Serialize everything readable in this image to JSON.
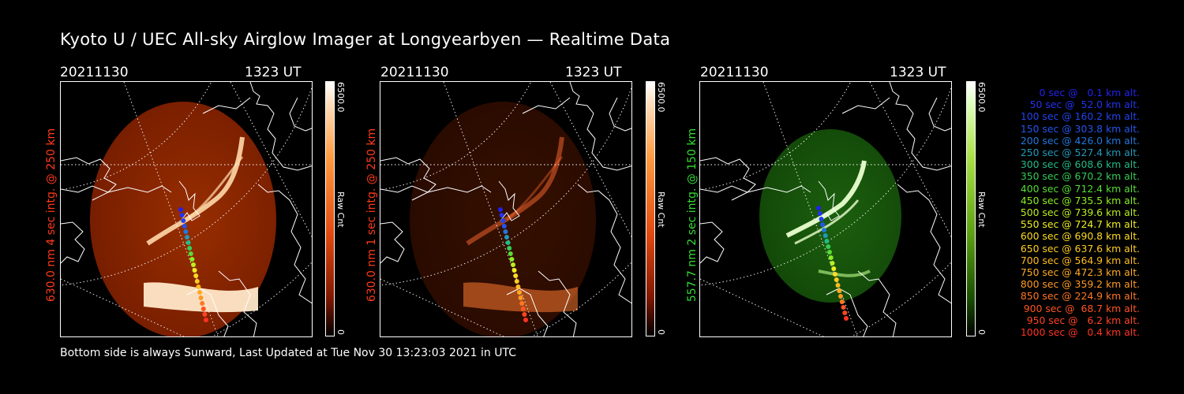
{
  "title": "Kyoto U / UEC All-sky Airglow Imager at Longyearbyen — Realtime Data",
  "footer": "Bottom side is always Sunward, Last Updated at Tue Nov 30 13:23:03 2021 in UTC",
  "panels": [
    {
      "date": "20211130",
      "time": "1323 UT",
      "ylabel": "630.0 nm 4 sec intg. @ 250 km",
      "label_color": "#ff3a1a",
      "cbar_max": "6500.0",
      "cbar_min": "0",
      "cbar_unit": "Raw Cnt",
      "theme": "red",
      "brightness": 1.0
    },
    {
      "date": "20211130",
      "time": "1323 UT",
      "ylabel": "630.0 nm 1 sec intg. @ 250 km",
      "label_color": "#ff3a1a",
      "cbar_max": "6500.0",
      "cbar_min": "0",
      "cbar_unit": "Raw Cnt",
      "theme": "red",
      "brightness": 0.35
    },
    {
      "date": "20211130",
      "time": "1323 UT",
      "ylabel": "557.7 nm 2 sec intg. @ 150 km",
      "label_color": "#33dd33",
      "cbar_max": "6500.0",
      "cbar_min": "0",
      "cbar_unit": "Raw Cnt",
      "theme": "green",
      "brightness": 1.0
    }
  ],
  "legend": [
    {
      "text": "0 sec @   0.1 km alt.",
      "color": "#2222ee"
    },
    {
      "text": "50 sec @  52.0 km alt.",
      "color": "#2233ee"
    },
    {
      "text": "100 sec @ 160.2 km alt.",
      "color": "#2244ee"
    },
    {
      "text": "150 sec @ 303.8 km alt.",
      "color": "#2255ee"
    },
    {
      "text": "200 sec @ 426.0 km alt.",
      "color": "#2277dd"
    },
    {
      "text": "250 sec @ 527.4 km alt.",
      "color": "#2299bb"
    },
    {
      "text": "300 sec @ 608.6 km alt.",
      "color": "#22bb88"
    },
    {
      "text": "350 sec @ 670.2 km alt.",
      "color": "#33cc55"
    },
    {
      "text": "400 sec @ 712.4 km alt.",
      "color": "#55dd33"
    },
    {
      "text": "450 sec @ 735.5 km alt.",
      "color": "#88ee22"
    },
    {
      "text": "500 sec @ 739.6 km alt.",
      "color": "#bbee22"
    },
    {
      "text": "550 sec @ 724.7 km alt.",
      "color": "#eeee22"
    },
    {
      "text": "600 sec @ 690.8 km alt.",
      "color": "#ffdd22"
    },
    {
      "text": "650 sec @ 637.6 km alt.",
      "color": "#ffcc22"
    },
    {
      "text": "700 sec @ 564.9 km alt.",
      "color": "#ffbb22"
    },
    {
      "text": "750 sec @ 472.3 km alt.",
      "color": "#ffaa22"
    },
    {
      "text": "800 sec @ 359.2 km alt.",
      "color": "#ff9922"
    },
    {
      "text": "850 sec @ 224.9 km alt.",
      "color": "#ff7722"
    },
    {
      "text": "900 sec @  68.7 km alt.",
      "color": "#ff5522"
    },
    {
      "text": "950 sec @   6.2 km alt.",
      "color": "#ff4422"
    },
    {
      "text": "1000 sec @   0.4 km alt.",
      "color": "#ff3322"
    }
  ]
}
